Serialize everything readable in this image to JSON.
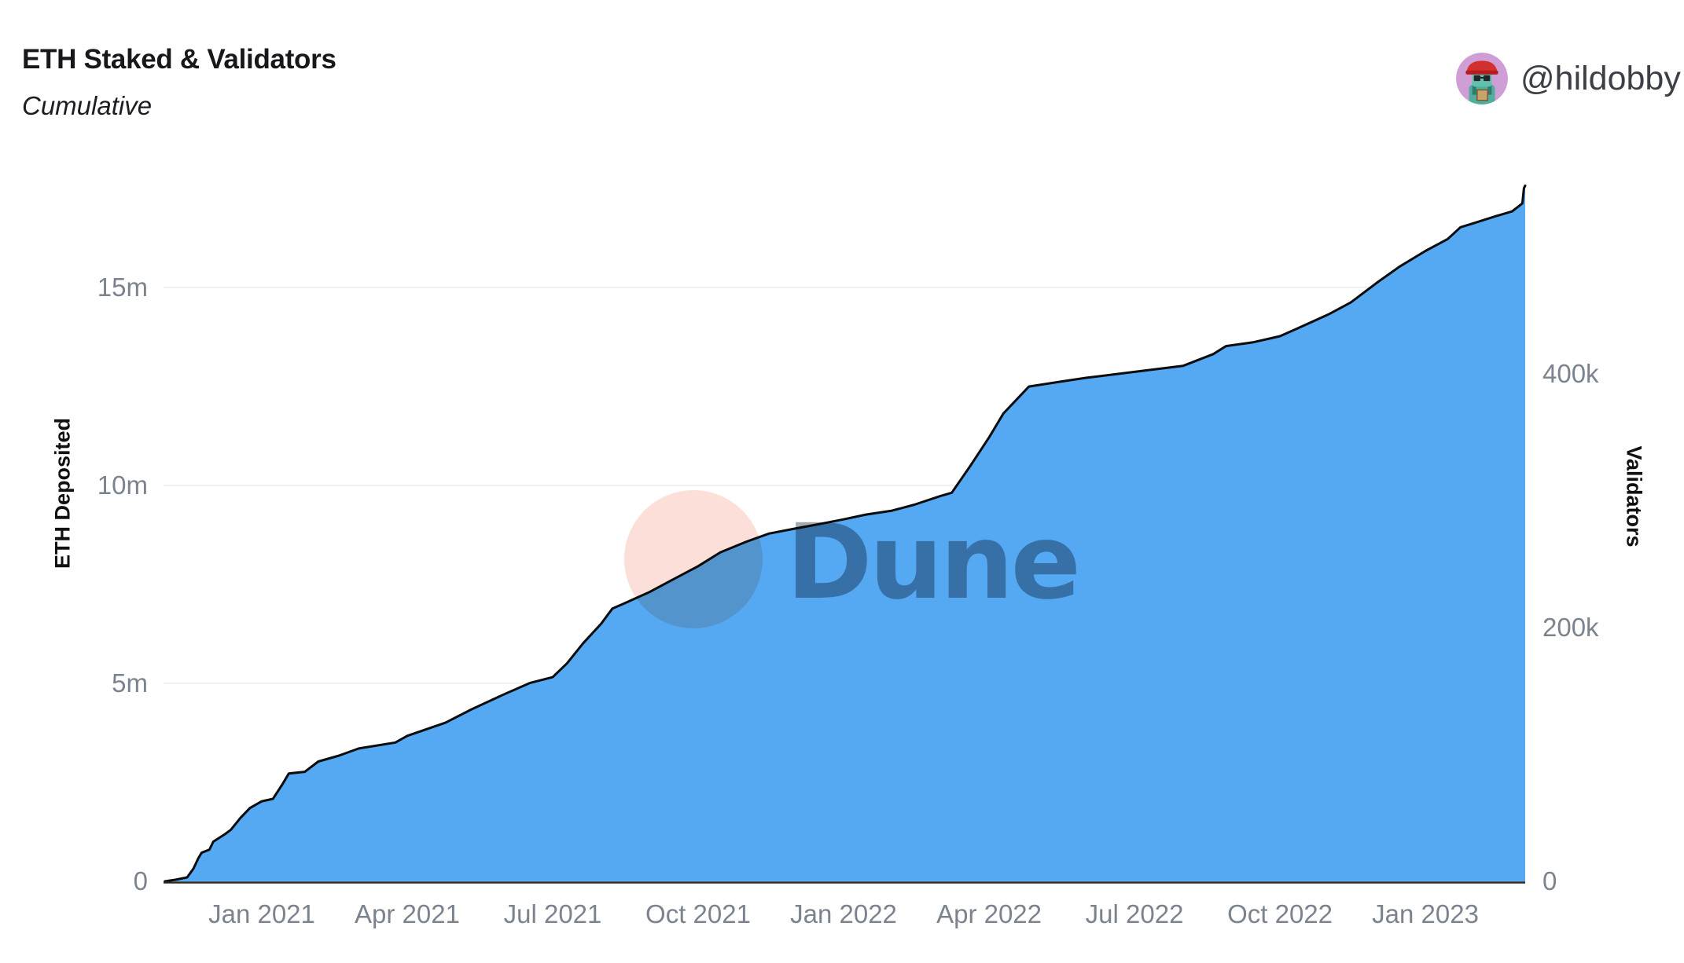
{
  "header": {
    "title": "ETH Staked & Validators",
    "subtitle": "Cumulative",
    "attribution": {
      "handle": "@hildobby",
      "avatar": "pixel-character-avatar"
    }
  },
  "colors": {
    "area_fill": "#55a9f2",
    "line_stroke": "#0b0b0c",
    "grid_line": "#f0f1f3",
    "axis_line": "#26272b",
    "tick_text": "#7b838e",
    "watermark_circle": "#fbdfd8",
    "watermark_text": "#a2a9b0",
    "avatar_bg": "#cf9ed6"
  },
  "watermark": {
    "text": "Dune"
  },
  "chart_data": {
    "type": "area",
    "title": "ETH Staked & Validators",
    "subtitle": "Cumulative",
    "grid": "horizontal-only",
    "legend": "none",
    "left_axis": {
      "label": "ETH Deposited",
      "tick_labels": [
        "0",
        "5m",
        "10m",
        "15m"
      ],
      "tick_values_millions": [
        0,
        5,
        10,
        15
      ],
      "range_millions": [
        0,
        19
      ]
    },
    "right_axis": {
      "label": "Validators",
      "tick_labels": [
        "0",
        "200k",
        "400k"
      ],
      "tick_values_thousands": [
        0,
        200,
        400
      ],
      "range_thousands": [
        0,
        593
      ]
    },
    "x_axis": {
      "tick_labels": [
        "Jan 2021",
        "Apr 2021",
        "Jul 2021",
        "Oct 2021",
        "Jan 2022",
        "Apr 2022",
        "Jul 2022",
        "Oct 2022",
        "Jan 2023"
      ],
      "tick_months_from_jan2021": [
        0,
        3,
        6,
        9,
        12,
        15,
        18,
        21,
        24
      ],
      "data_start": "2020-11-01",
      "data_end": "2023-03-03"
    },
    "dates": [
      "2020-11-01",
      "2020-11-08",
      "2020-11-15",
      "2020-11-19",
      "2020-11-22",
      "2020-11-24",
      "2020-11-29",
      "2020-12-01",
      "2020-12-08",
      "2020-12-12",
      "2020-12-18",
      "2020-12-24",
      "2021-01-01",
      "2021-01-08",
      "2021-01-14",
      "2021-01-18",
      "2021-01-28",
      "2021-02-06",
      "2021-02-19",
      "2021-03-01",
      "2021-03-24",
      "2021-04-01",
      "2021-04-25",
      "2021-05-11",
      "2021-06-01",
      "2021-06-17",
      "2021-07-01",
      "2021-07-10",
      "2021-07-20",
      "2021-08-01",
      "2021-08-08",
      "2021-08-15",
      "2021-09-01",
      "2021-09-15",
      "2021-10-01",
      "2021-10-15",
      "2021-11-01",
      "2021-11-15",
      "2021-12-01",
      "2021-12-15",
      "2022-01-01",
      "2022-01-15",
      "2022-02-01",
      "2022-02-15",
      "2022-03-01",
      "2022-03-08",
      "2022-03-20",
      "2022-04-01",
      "2022-04-10",
      "2022-04-26",
      "2022-05-15",
      "2022-06-01",
      "2022-07-01",
      "2022-08-01",
      "2022-08-20",
      "2022-08-28",
      "2022-09-15",
      "2022-10-01",
      "2022-10-15",
      "2022-11-01",
      "2022-11-15",
      "2022-12-01",
      "2022-12-15",
      "2023-01-01",
      "2023-01-15",
      "2023-01-23",
      "2023-02-01",
      "2023-02-15",
      "2023-02-25",
      "2023-03-01",
      "2023-03-02",
      "2023-03-03"
    ],
    "series": [
      {
        "name": "ETH Deposited",
        "axis": "left",
        "unit": "million ETH",
        "style": "area",
        "color": "#55a9f2",
        "values": [
          0.0,
          0.04,
          0.1,
          0.32,
          0.58,
          0.72,
          0.8,
          1.0,
          1.18,
          1.3,
          1.6,
          1.85,
          2.02,
          2.08,
          2.45,
          2.72,
          2.76,
          3.02,
          3.17,
          3.35,
          3.5,
          3.67,
          4.0,
          4.34,
          4.72,
          5.0,
          5.15,
          5.5,
          6.0,
          6.5,
          6.88,
          7.0,
          7.3,
          7.6,
          7.95,
          8.3,
          8.57,
          8.77,
          8.9,
          9.0,
          9.13,
          9.25,
          9.35,
          9.5,
          9.72,
          9.8,
          10.5,
          11.2,
          11.8,
          12.48,
          12.6,
          12.7,
          12.85,
          13.0,
          13.3,
          13.5,
          13.6,
          13.75,
          14.0,
          14.3,
          14.6,
          15.1,
          15.5,
          15.9,
          16.2,
          16.5,
          16.6,
          16.78,
          16.9,
          17.1,
          17.48,
          17.55
        ]
      },
      {
        "name": "Validators",
        "axis": "right",
        "unit": "thousand validators",
        "style": "line",
        "color": "#0b0b0c",
        "values": [
          0.0,
          1.3,
          3.1,
          10.0,
          18.1,
          22.5,
          25.0,
          31.3,
          36.9,
          40.6,
          50.0,
          57.8,
          63.1,
          65.0,
          76.6,
          85.0,
          86.3,
          94.4,
          99.1,
          104.7,
          109.4,
          114.7,
          125.0,
          135.6,
          147.5,
          156.3,
          160.9,
          171.9,
          187.5,
          203.1,
          215.0,
          218.8,
          228.1,
          237.5,
          248.4,
          259.4,
          267.8,
          274.1,
          278.1,
          281.3,
          285.3,
          289.1,
          292.2,
          296.9,
          303.8,
          306.3,
          328.1,
          350.0,
          368.8,
          390.0,
          393.8,
          396.9,
          401.6,
          406.3,
          415.6,
          421.9,
          425.0,
          429.7,
          437.5,
          446.9,
          456.3,
          471.9,
          484.4,
          496.9,
          506.3,
          515.6,
          518.8,
          524.4,
          528.1,
          534.4,
          546.3,
          548.4
        ]
      }
    ]
  }
}
